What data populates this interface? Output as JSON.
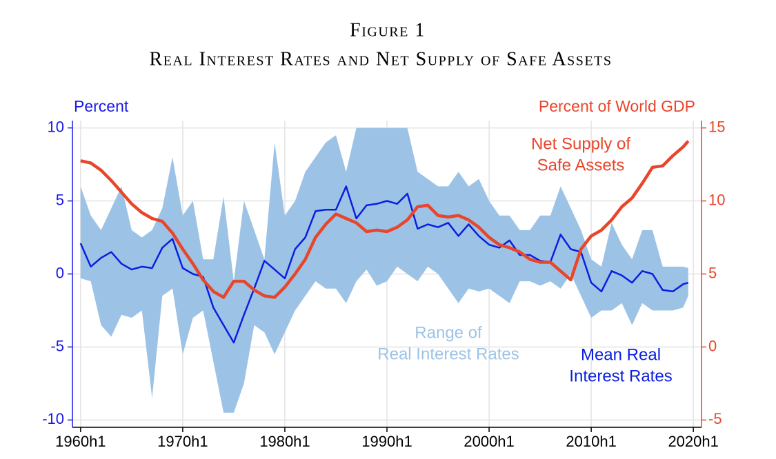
{
  "chart_data": {
    "type": "line",
    "title": "Figure 1",
    "subtitle": "Real Interest Rates and Net Supply of Safe Assets",
    "y_label": "Percent",
    "y2_label": "Percent of World GDP",
    "x": [
      1960,
      1961,
      1962,
      1963,
      1964,
      1965,
      1966,
      1967,
      1968,
      1969,
      1970,
      1971,
      1972,
      1973,
      1974,
      1975,
      1976,
      1977,
      1978,
      1979,
      1980,
      1981,
      1982,
      1983,
      1984,
      1985,
      1986,
      1987,
      1988,
      1989,
      1990,
      1991,
      1992,
      1993,
      1994,
      1995,
      1996,
      1997,
      1998,
      1999,
      2000,
      2001,
      2002,
      2003,
      2004,
      2005,
      2006,
      2007,
      2008,
      2009,
      2010,
      2011,
      2012,
      2013,
      2014,
      2015,
      2016,
      2017,
      2018,
      2019,
      2019.5
    ],
    "xlim": [
      1959.2,
      2020.8
    ],
    "xticks": [
      {
        "value": 1960,
        "label": "1960h1"
      },
      {
        "value": 1970,
        "label": "1970h1"
      },
      {
        "value": 1980,
        "label": "1980h1"
      },
      {
        "value": 1990,
        "label": "1990h1"
      },
      {
        "value": 2000,
        "label": "2000h1"
      },
      {
        "value": 2010,
        "label": "2010h1"
      },
      {
        "value": 2020,
        "label": "2020h1"
      }
    ],
    "ylim": [
      -10.5,
      10.5
    ],
    "yticks": [
      -10,
      -5,
      0,
      5,
      10
    ],
    "y2lim": [
      -5.5,
      15.5
    ],
    "y2ticks": [
      -5,
      0,
      5,
      10,
      15
    ],
    "grid": true,
    "y_color": "#1a1ae6",
    "y2_color": "#e8452a",
    "series": [
      {
        "kind": "range",
        "label": [
          "Range of",
          "Real Interest Rates"
        ],
        "color": "#9cc3e6",
        "low": [
          -0.3,
          -0.5,
          -3.5,
          -4.3,
          -2.8,
          -3.0,
          -2.5,
          -8.5,
          -1.5,
          -1.0,
          -5.5,
          -3.0,
          -2.5,
          -6.0,
          -9.5,
          -9.5,
          -7.5,
          -3.5,
          -4.0,
          -5.5,
          -4.0,
          -2.5,
          -1.5,
          -0.5,
          -1.0,
          -1.0,
          -2.0,
          -0.5,
          0.3,
          -0.8,
          -0.5,
          0.5,
          0.0,
          -0.5,
          0.5,
          0.0,
          -1.0,
          -2.0,
          -1.0,
          -1.2,
          -1.0,
          -1.5,
          -2.0,
          -0.5,
          -0.5,
          -0.8,
          -0.5,
          -1.0,
          0.0,
          -1.5,
          -3.0,
          -2.5,
          -2.5,
          -2.0,
          -3.5,
          -2.0,
          -2.5,
          -2.5,
          -2.5,
          -2.3,
          -1.5
        ],
        "high": [
          6.0,
          4.0,
          3.0,
          4.5,
          6.0,
          3.0,
          2.5,
          3.0,
          4.5,
          8.0,
          4.0,
          5.0,
          1.0,
          1.0,
          5.3,
          -0.5,
          5.0,
          3.0,
          1.0,
          9.0,
          4.0,
          5.0,
          7.0,
          8.0,
          9.0,
          9.5,
          7.0,
          10,
          10,
          10,
          10,
          10,
          10,
          7.0,
          6.5,
          6.0,
          6.0,
          7.0,
          6.0,
          6.5,
          5.0,
          4.0,
          4.0,
          3.0,
          3.0,
          4.0,
          4.0,
          6.0,
          4.5,
          3.0,
          1.0,
          0.5,
          3.5,
          2.0,
          1.0,
          3.0,
          3.0,
          0.5,
          0.5,
          0.5,
          0.4
        ]
      },
      {
        "kind": "line",
        "label": [
          "Mean Real",
          "Interest Rates"
        ],
        "color": "#0a1ee0",
        "width": 2.5,
        "values": [
          2.1,
          0.5,
          1.1,
          1.5,
          0.7,
          0.3,
          0.5,
          0.4,
          1.8,
          2.4,
          0.4,
          0.0,
          -0.2,
          -2.3,
          -3.5,
          -4.7,
          -2.8,
          -1.0,
          0.9,
          0.3,
          -0.3,
          1.7,
          2.5,
          4.3,
          4.4,
          4.4,
          6.0,
          3.8,
          4.7,
          4.8,
          5.0,
          4.8,
          5.5,
          3.1,
          3.4,
          3.2,
          3.5,
          2.6,
          3.4,
          2.6,
          2.0,
          1.8,
          2.3,
          1.3,
          1.3,
          0.9,
          0.8,
          2.7,
          1.7,
          1.5,
          -0.6,
          -1.2,
          0.2,
          -0.1,
          -0.6,
          0.2,
          0.0,
          -1.1,
          -1.2,
          -0.7,
          -0.6
        ]
      },
      {
        "kind": "line",
        "axis": "y2",
        "label": [
          "Net Supply of",
          "Safe Assets"
        ],
        "color": "#e8452a",
        "width": 4.5,
        "values": [
          12.75,
          12.6,
          12.1,
          11.4,
          10.6,
          9.8,
          9.2,
          8.8,
          8.6,
          7.8,
          6.7,
          5.7,
          4.6,
          3.8,
          3.4,
          4.5,
          4.5,
          3.9,
          3.5,
          3.4,
          4.1,
          5.0,
          6.0,
          7.5,
          8.4,
          9.1,
          8.8,
          8.5,
          7.9,
          8.0,
          7.9,
          8.2,
          8.7,
          9.6,
          9.7,
          9.0,
          8.9,
          9.0,
          8.7,
          8.2,
          7.5,
          7.0,
          6.8,
          6.5,
          6.0,
          5.8,
          5.8,
          5.2,
          4.6,
          6.7,
          7.6,
          8.0,
          8.7,
          9.6,
          10.2,
          11.2,
          12.3,
          12.4,
          13.1,
          13.7,
          14.1
        ]
      }
    ]
  }
}
